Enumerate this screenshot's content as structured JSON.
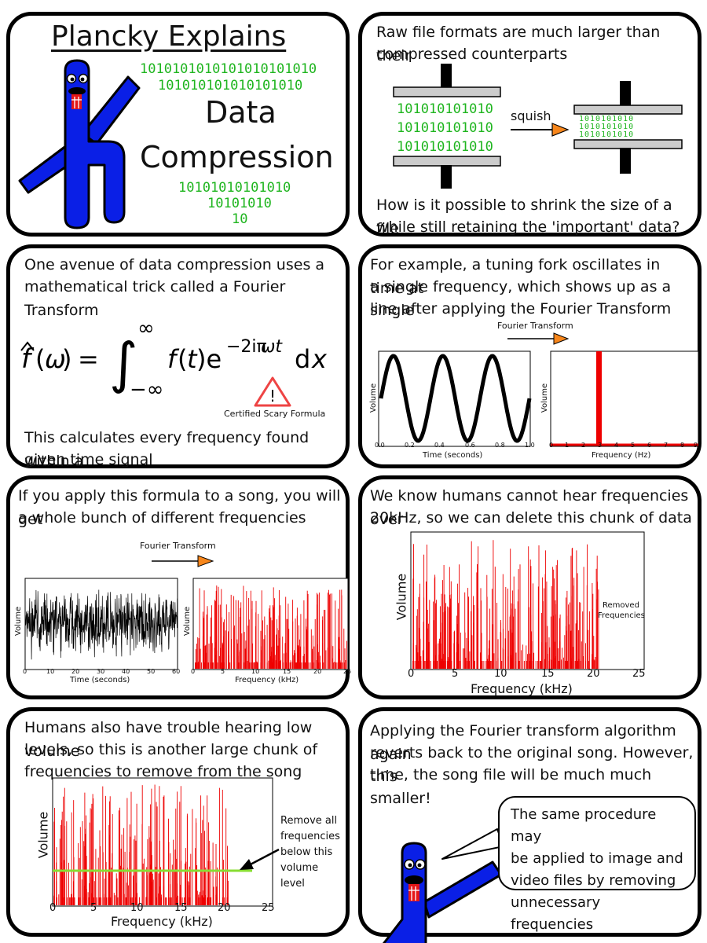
{
  "colors": {
    "binary_green": "#1fb51f",
    "signal_red": "#ee0000",
    "arrow_orange": "#f7861b",
    "plancky_blue": "#0a1fe6",
    "cutoff_green": "#88dd33"
  },
  "panel1": {
    "title": "Plancky Explains",
    "bin_top": [
      "1010101010101010101010",
      "101010101010101010"
    ],
    "word1": "Data",
    "word2": "Compression",
    "bin_bottom": [
      "10101010101010",
      "10101010",
      "10"
    ]
  },
  "panel2": {
    "text1": [
      "Raw file formats are much larger than their",
      "compressed counterparts"
    ],
    "bin_left": [
      "101010101010",
      "101010101010",
      "101010101010"
    ],
    "squish": "squish",
    "bin_right": [
      "1010101010",
      "1010101010",
      "1010101010"
    ],
    "text2": [
      "How is it possible to shrink the size of a file",
      "while still retaining the 'important' data?"
    ]
  },
  "panel3": {
    "text1": [
      "One avenue of data compression uses a",
      "mathematical trick called a Fourier Transform"
    ],
    "warning": "Certified Scary Formula",
    "text2": [
      "This calculates every frequency found within a",
      "given time signal"
    ]
  },
  "panel4": {
    "text": [
      "For example, a tuning fork oscillates in time at",
      "a single frequency, which shows up as a single",
      "line after applying the Fourier Transform"
    ],
    "arrow_label": "Fourier Transform",
    "left_chart": {
      "ylabel": "Volume",
      "xlabel": "Time (seconds)",
      "ticks": [
        "0.0",
        "0.2",
        "0.4",
        "0.6",
        "0.8",
        "1.0"
      ]
    },
    "right_chart": {
      "ylabel": "Volume",
      "xlabel": "Frequency (Hz)",
      "ticks": [
        "0",
        "1",
        "2",
        "3",
        "4",
        "5",
        "6",
        "7",
        "8",
        "9"
      ]
    }
  },
  "panel5": {
    "text": [
      "If you apply this formula to a song, you will get",
      "a whole bunch of different frequencies"
    ],
    "arrow_label": "Fourier Transform",
    "left_chart": {
      "ylabel": "Volume",
      "xlabel": "Time (seconds)",
      "ticks": [
        "0",
        "10",
        "20",
        "30",
        "40",
        "50",
        "60"
      ]
    },
    "right_chart": {
      "ylabel": "Volume",
      "xlabel": "Frequency (kHz)",
      "ticks": [
        "0",
        "5",
        "10",
        "15",
        "20",
        "25"
      ]
    }
  },
  "panel6": {
    "text": [
      "We know humans cannot hear frequencies over",
      "20kHz, so we can delete this chunk of data"
    ],
    "removed": [
      "Removed",
      "Frequencies"
    ],
    "chart": {
      "ylabel": "Volume",
      "xlabel": "Frequency (kHz)",
      "ticks": [
        "0",
        "5",
        "10",
        "15",
        "20",
        "25"
      ]
    }
  },
  "panel7": {
    "text": [
      "Humans also have trouble hearing low volume",
      "levels, so this is another large chunk of",
      "frequencies to remove from the song"
    ],
    "note": [
      "Remove all",
      "frequencies",
      "below this",
      "volume level"
    ],
    "chart": {
      "ylabel": "Volume",
      "xlabel": "Frequency (kHz)",
      "ticks": [
        "0",
        "5",
        "10",
        "15",
        "20",
        "25"
      ]
    }
  },
  "panel8": {
    "text": [
      "Applying the Fourier transform algorithm again",
      "reverts back to the original song. However, this",
      "time, the song file will be much much smaller!"
    ],
    "bubble": [
      "The same procedure may",
      "be applied to image and",
      "video files by removing",
      "unnecessary frequencies"
    ]
  }
}
